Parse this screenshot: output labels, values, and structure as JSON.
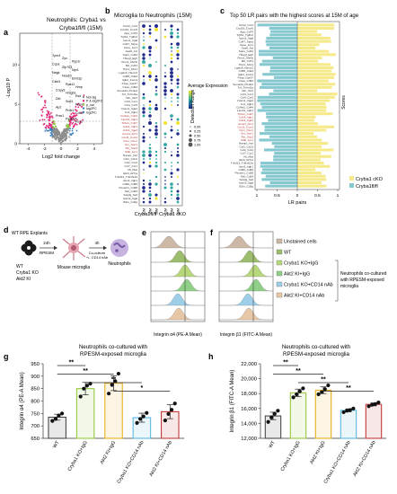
{
  "panels": {
    "a": {
      "letter": "a",
      "title_line1": "Neutrophils: Cryba1 vs",
      "title_line2": "Cryba1fl/fl (15M)",
      "xlabel": "Log2 fold change",
      "ylabel": "-Log10 P",
      "x_ticks": [
        "-4",
        "-2",
        "0",
        "2",
        "4"
      ],
      "y_ticks": [
        "0",
        "5",
        "10"
      ],
      "point_labels": [
        "Tpm4",
        "Zyx",
        "Ppp1r",
        "Ccpa",
        "Zfp703",
        "Npr1",
        "Nagk",
        "Noa10",
        "Emd1p",
        "Cstd1",
        "Rps11",
        "Hnrp",
        "Cnpy3",
        "Hmgb1",
        "Esd",
        "Dld",
        "Sod1",
        "Rbm3",
        "Ap2",
        "Prdx1",
        "Cd63",
        "Prss1",
        "Pa3bp4",
        "Fos1"
      ],
      "legend": [
        "Not sig",
        "P & log2FC",
        "p_val",
        "log2FC",
        "log2FC"
      ],
      "colors": {
        "notsig": "#8c8c8c",
        "sig": "#e0287a",
        "fc": "#3b7fc0",
        "p": "#8bbf3d"
      }
    },
    "b": {
      "letter": "b",
      "title": "Microglia to Neutrophils (15M)",
      "group_labels": [
        "Cryba1fl/fl",
        "Cryba1 cKO"
      ],
      "time_labels": [
        "12M",
        "15M",
        "18M",
        "12M",
        "15M",
        "18M"
      ],
      "legend_expr_title": "Average Expression",
      "legend_pct_title": "Detection Range",
      "legend_pct_values": [
        "0.00",
        "0.25",
        "0.50",
        "0.75",
        "1.00"
      ],
      "rows": [
        "Ccl12_Ccr2",
        "Cxcl16_Cxcr6",
        "App_Cd74",
        "Tgfb1_Tgfbr2",
        "Icam1_Itgal",
        "Cd47_Sirpa",
        "Apoe_Lrp1",
        "Gas6_Axl",
        "Spp1_Cd44",
        "Hbegf_Egfr",
        "Pros1_Mertk",
        "Mif_Cd74",
        "Ptprc_Mrc1",
        "Lgals9_Havcr2",
        "Cd86_Ctla4",
        "Itgb2_Icam1",
        "Psap_Gpr37",
        "C1qa_Cd93",
        "Sema4d_Plxnb2",
        "Tnf_Tnfrsf1a",
        "Il1b_Il1r2",
        "Ccl3_Ccr1",
        "Ccl4_Ccr5",
        "Vcam1_Itga4",
        "Fn1_Itgb1",
        "Col4a1_Cd44",
        "Lamb1_Itgb1",
        "Thbs1_Cd47",
        "Cd14_Itgb1",
        "Cd14_Itga4",
        "Anxa1_Fpr1",
        "Cxcl2_Cxcr2",
        "Osm_Osmr",
        "Grn_Sort1",
        "Ptn_Sdc3",
        "Mdk_Lrp1",
        "Nampt_Insr",
        "Csf1_Csf1r",
        "Ccl2_Ccr2",
        "Ccl7_Ccr1",
        "Il6_Il6st",
        "Ebi3_Il27ra",
        "Tnfsf12_Tnfrsf12a",
        "Jam2_Itgb1",
        "Cd99_Cd99",
        "Pecam1_Cd38",
        "Sell_Cd34",
        "Selplg_Sell",
        "Icam2_Itgal",
        "B2m_Cd3g"
      ]
    },
    "c": {
      "letter": "c",
      "title": "Top 50 LR pairs with the highest scores at 15M of age",
      "xlabel": "LR pairs",
      "ylabel": "Scores",
      "x_ticks": [
        "1",
        "0.5",
        "0",
        "0.5",
        "1"
      ],
      "legend": [
        "Cryba1 cKO",
        "Cryba1fl/fl"
      ],
      "colors": {
        "cko": "#f6e98a",
        "flfl": "#86c8cf"
      }
    },
    "d": {
      "letter": "d",
      "line1": "WT RPE Explants",
      "arrow1": "24h",
      "arrow1_sub": "RPESM",
      "arrow2": "4h",
      "arrow2_sub1": "Co-culture",
      "arrow2_sub2": "+/- CD14 nAb",
      "mouse_label": "Mouse microglia",
      "neut_label": "Neutrophils",
      "genotypes": [
        "WT",
        "Cryba1 KO",
        "Akt2 KI"
      ]
    },
    "e": {
      "letter": "e",
      "xlabel": "Integrin α4 (PE-A Mean)"
    },
    "f": {
      "letter": "f",
      "xlabel": "Integrin β1 (FITC-A Mean)"
    },
    "ef_legend": {
      "items": [
        "Unstained cells",
        "WT",
        "Cryba1 KO+IgG",
        "Akt2 KI+IgG",
        "Cryba1 KO+CD14 nAb",
        "Akt2 KI+CD14 nAb"
      ],
      "colors": [
        "#cdb8a6",
        "#9bbd6c",
        "#b7d87a",
        "#8fcf88",
        "#9ecfe8",
        "#e8c7a6"
      ],
      "bracket_text": "Neutrophils co-cultured with RPESM-exposed microglia"
    }
  },
  "chart_data": [
    {
      "type": "bar",
      "panel": "g",
      "title": "Neutrophils co-cultured with RPESM-exposed microglia",
      "categories": [
        "WT",
        "Cryba1 KO+IgG",
        "Akt2 KI+IgG",
        "Cryba1 KO+CD14 nAb",
        "Akt2 KI+CD14 nAb"
      ],
      "values": [
        735,
        850,
        872,
        733,
        757
      ],
      "errors": [
        12,
        25,
        30,
        18,
        28
      ],
      "points": [
        [
          720,
          728,
          742,
          750
        ],
        [
          818,
          850,
          862,
          870
        ],
        [
          830,
          865,
          880,
          910
        ],
        [
          712,
          728,
          738,
          752
        ],
        [
          722,
          748,
          765,
          790
        ]
      ],
      "ylabel": "Integrin α4 (PE-A Mean)",
      "ylim": [
        650,
        950
      ],
      "yticks": [
        650,
        700,
        750,
        800,
        850,
        900,
        950
      ],
      "significance": [
        {
          "from": 0,
          "to": 1,
          "label": "**"
        },
        {
          "from": 0,
          "to": 2,
          "label": "**"
        },
        {
          "from": 1,
          "to": 3,
          "label": "**"
        },
        {
          "from": 2,
          "to": 4,
          "label": "*"
        }
      ],
      "colors": [
        "#4a4a4a",
        "#97c83e",
        "#e6b020",
        "#5ab8e0",
        "#c23a3a"
      ]
    },
    {
      "type": "bar",
      "panel": "h",
      "title": "Neutrophils co-cultured with RPESM-exposed microglia",
      "categories": [
        "WT",
        "Cryba1 KO+IgG",
        "Akt2 KI+IgG",
        "Cryba1 KO+CD14 nAb",
        "Akt2 KI+CD14 nAb"
      ],
      "values": [
        15000,
        18100,
        18450,
        15750,
        16550
      ],
      "errors": [
        500,
        500,
        450,
        200,
        200
      ],
      "points": [
        [
          14200,
          14800,
          15300,
          15700
        ],
        [
          17500,
          17900,
          18300,
          18700
        ],
        [
          17900,
          18200,
          18600,
          19100
        ],
        [
          15500,
          15700,
          15800,
          16000
        ],
        [
          16300,
          16500,
          16600,
          16800
        ]
      ],
      "ylabel": "Integrin β1 (FITC-A Mean)",
      "ylim": [
        12000,
        22000
      ],
      "yticks": [
        12000,
        14000,
        16000,
        18000,
        20000,
        22000
      ],
      "ytick_labels": [
        "12,000",
        "14,000",
        "16,000",
        "18,000",
        "20,000",
        "22,000"
      ],
      "significance": [
        {
          "from": 0,
          "to": 1,
          "label": "**"
        },
        {
          "from": 0,
          "to": 2,
          "label": "**"
        },
        {
          "from": 1,
          "to": 3,
          "label": "**"
        },
        {
          "from": 2,
          "to": 4,
          "label": "**"
        }
      ],
      "colors": [
        "#4a4a4a",
        "#97c83e",
        "#e6b020",
        "#5ab8e0",
        "#c23a3a"
      ]
    }
  ]
}
